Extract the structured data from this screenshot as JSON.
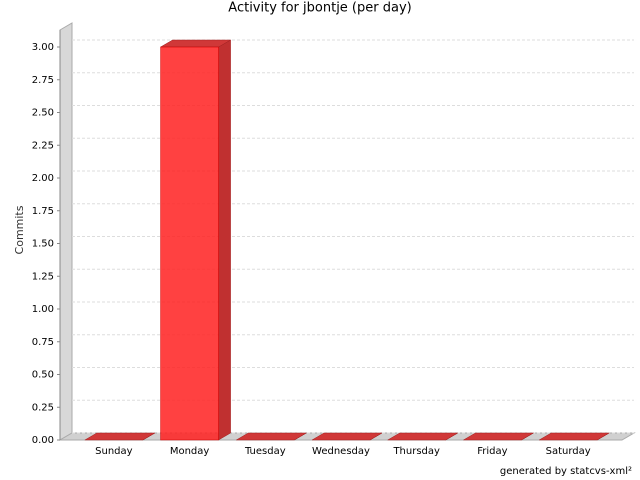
{
  "chart_data": {
    "type": "bar3d",
    "title": "Activity for jbontje (per day)",
    "y_label": "Commits",
    "footer": "generated by statcvs-xml²",
    "categories": [
      "Sunday",
      "Monday",
      "Tuesday",
      "Wednesday",
      "Thursday",
      "Friday",
      "Saturday"
    ],
    "values": [
      0,
      3,
      0,
      0,
      0,
      0,
      0
    ],
    "color": "#ff2020",
    "ylim": [
      0,
      3
    ],
    "yticks": [
      {
        "value": 0,
        "label": "0.00"
      },
      {
        "value": 0.25,
        "label": "0.25"
      },
      {
        "value": 0.5,
        "label": "0.50"
      },
      {
        "value": 0.75,
        "label": "0.75"
      },
      {
        "value": 1,
        "label": "1.00"
      },
      {
        "value": 1.25,
        "label": "1.25"
      },
      {
        "value": 1.5,
        "label": "1.50"
      },
      {
        "value": 1.75,
        "label": "1.75"
      },
      {
        "value": 2,
        "label": "2.00"
      },
      {
        "value": 2.25,
        "label": "2.25"
      },
      {
        "value": 2.5,
        "label": "2.50"
      },
      {
        "value": 2.75,
        "label": "2.75"
      },
      {
        "value": 3,
        "label": "3.00"
      }
    ],
    "grid": true
  }
}
